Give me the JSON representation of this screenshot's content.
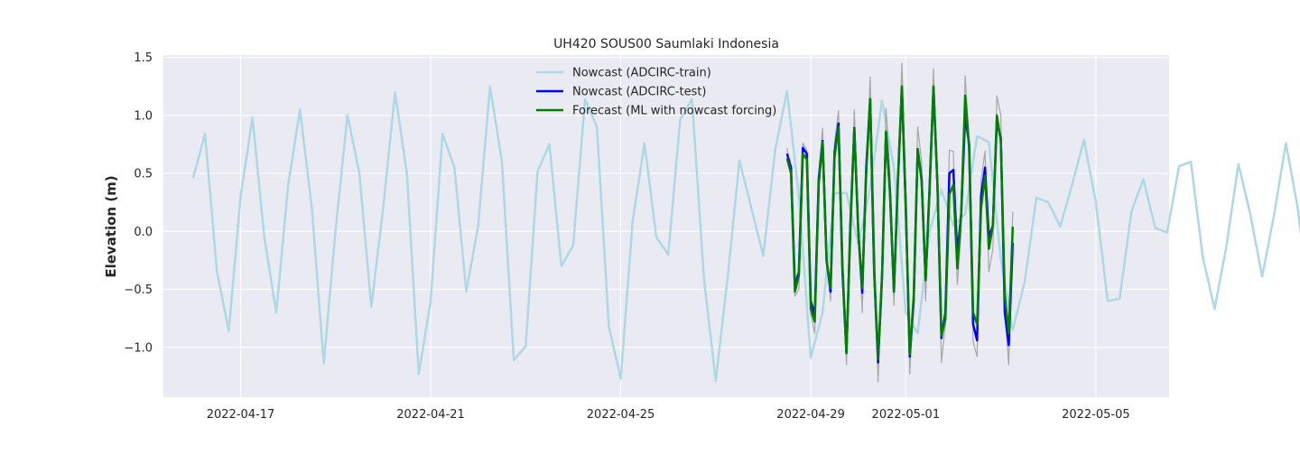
{
  "chart_data": {
    "type": "line",
    "title": "UH420 SOUS00 Saumlaki Indonesia",
    "xlabel": "",
    "ylabel": "Elevation (m)",
    "xlim": [
      "2022-04-15T09:00",
      "2022-05-06T13:00"
    ],
    "ylim": [
      -1.43,
      1.52
    ],
    "x_ticks": [
      "2022-04-17",
      "2022-04-21",
      "2022-04-25",
      "2022-04-29",
      "2022-05-01",
      "2022-05-05"
    ],
    "y_ticks": [
      -1.0,
      -0.5,
      0.0,
      0.5,
      1.0,
      1.5
    ],
    "y_tick_labels": [
      "−1.0",
      "−0.5",
      "0.0",
      "0.5",
      "1.0",
      "1.5"
    ],
    "grid": true,
    "legend_position": "top-center",
    "series": [
      {
        "name": "Nowcast (ADCIRC-train)",
        "color": "#add8e6",
        "start": "2022-04-16T00:00",
        "step_hours": 6,
        "values": [
          0.46,
          0.84,
          -0.34,
          -0.86,
          0.3,
          0.98,
          -0.05,
          -0.7,
          0.4,
          1.05,
          0.2,
          -1.14,
          0.02,
          1.0,
          0.5,
          -0.65,
          0.2,
          1.2,
          0.5,
          -1.23,
          -0.6,
          0.84,
          0.55,
          -0.52,
          0.05,
          1.25,
          0.6,
          -1.11,
          -0.99,
          0.52,
          0.75,
          -0.3,
          -0.12,
          1.14,
          0.9,
          -0.82,
          -1.27,
          0.08,
          0.76,
          -0.05,
          -0.2,
          0.96,
          1.14,
          -0.4,
          -1.29,
          -0.4,
          0.61,
          0.2,
          -0.21,
          0.7,
          1.21,
          0.3,
          -1.09,
          -0.7,
          0.33,
          0.33,
          -0.11,
          0.37,
          1.13,
          0.55,
          -0.7,
          -0.88,
          0.0,
          0.36,
          0.05,
          0.15,
          0.82,
          0.77,
          -0.24,
          -0.85,
          -0.44,
          0.29,
          0.25,
          0.04,
          0.4,
          0.79,
          0.25,
          -0.6,
          -0.58,
          0.17,
          0.45,
          0.03,
          -0.01,
          0.56,
          0.6,
          -0.22,
          -0.67,
          -0.12,
          0.58,
          0.15,
          -0.39,
          0.14,
          0.76,
          0.2,
          -0.62,
          -0.2,
          0.69,
          0.36,
          -0.6,
          -0.36
        ]
      },
      {
        "name": "",
        "color": "#a6a6a6",
        "start": "2022-04-28T12:00",
        "step_hours": 2,
        "values": [
          0.72,
          0.5,
          -0.56,
          -0.5,
          0.76,
          0.7,
          -0.72,
          -0.88,
          0.5,
          0.89,
          -0.2,
          -0.6,
          0.76,
          1.04,
          -0.2,
          -1.15,
          0.0,
          1.05,
          0.1,
          -0.7,
          0.5,
          1.33,
          0.0,
          -1.3,
          -0.35,
          1.06,
          0.5,
          -0.64,
          0.4,
          1.45,
          0.4,
          -1.23,
          -0.54,
          0.9,
          0.6,
          -0.6,
          0.4,
          1.4,
          0.35,
          -1.13,
          -0.8,
          0.7,
          0.69,
          -0.46,
          0.0,
          1.34,
          0.8,
          -0.95,
          -1.08,
          0.44,
          0.69,
          -0.35,
          -0.15,
          1.17,
          1.0,
          -0.69,
          -1.15,
          0.17
        ]
      },
      {
        "name": "Nowcast (ADCIRC-test)",
        "color": "#0000ff",
        "start": "2022-04-28T12:00",
        "step_hours": 2,
        "values": [
          0.67,
          0.55,
          -0.47,
          -0.35,
          0.72,
          0.67,
          -0.6,
          -0.72,
          0.45,
          0.78,
          -0.25,
          -0.52,
          0.68,
          0.93,
          -0.35,
          -1.05,
          0.05,
          0.89,
          0.0,
          -0.53,
          0.55,
          1.14,
          -0.35,
          -1.13,
          -0.4,
          0.85,
          0.35,
          -0.52,
          0.45,
          1.23,
          0.2,
          -1.08,
          -0.6,
          0.71,
          0.45,
          -0.42,
          0.38,
          1.24,
          0.4,
          -0.92,
          -0.7,
          0.5,
          0.53,
          -0.2,
          0.15,
          1.0,
          0.75,
          -0.8,
          -0.94,
          0.3,
          0.55,
          -0.05,
          0.05,
          0.95,
          0.8,
          -0.7,
          -0.98,
          -0.1
        ]
      },
      {
        "name": "Forecast (ML with nowcast forcing)",
        "color": "#008000",
        "start": "2022-04-28T12:00",
        "step_hours": 2,
        "values": [
          0.63,
          0.5,
          -0.52,
          -0.38,
          0.67,
          0.62,
          -0.67,
          -0.78,
          0.41,
          0.77,
          -0.25,
          -0.49,
          0.64,
          0.9,
          -0.3,
          -1.05,
          0.01,
          0.88,
          0.0,
          -0.49,
          0.5,
          1.14,
          -0.33,
          -1.1,
          -0.38,
          0.86,
          0.33,
          -0.52,
          0.42,
          1.25,
          0.23,
          -1.06,
          -0.56,
          0.71,
          0.43,
          -0.42,
          0.35,
          1.25,
          0.4,
          -0.9,
          -0.76,
          0.32,
          0.4,
          -0.32,
          0.15,
          1.17,
          0.72,
          -0.7,
          -0.8,
          0.2,
          0.48,
          -0.15,
          0.05,
          1.0,
          0.78,
          -0.55,
          -0.88,
          0.04
        ]
      }
    ]
  }
}
